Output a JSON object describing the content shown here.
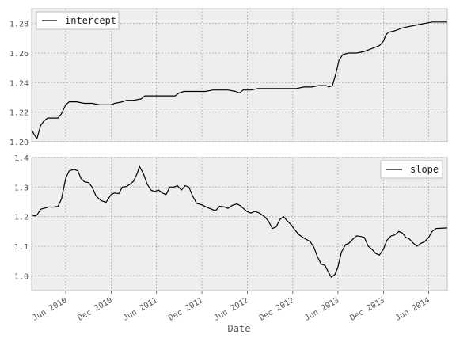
{
  "chart_data": [
    {
      "type": "line",
      "title": "",
      "xlabel": "",
      "ylabel": "",
      "series": [
        {
          "name": "intercept"
        }
      ],
      "legend": "top-left",
      "grid": true,
      "xlim": [
        "2010-01-15",
        "2014-08-15"
      ],
      "ylim": [
        1.2,
        1.29
      ],
      "yticks": [
        1.2,
        1.22,
        1.24,
        1.26,
        1.28
      ],
      "ytick_labels": [
        "1.20",
        "1.22",
        "1.24",
        "1.26",
        "1.28"
      ],
      "points": [
        [
          "2010-01-15",
          1.208
        ],
        [
          "2010-01-25",
          1.205
        ],
        [
          "2010-02-05",
          1.202
        ],
        [
          "2010-02-20",
          1.211
        ],
        [
          "2010-03-05",
          1.214
        ],
        [
          "2010-03-20",
          1.216
        ],
        [
          "2010-04-10",
          1.216
        ],
        [
          "2010-05-01",
          1.216
        ],
        [
          "2010-05-15",
          1.219
        ],
        [
          "2010-06-01",
          1.225
        ],
        [
          "2010-06-15",
          1.227
        ],
        [
          "2010-07-15",
          1.227
        ],
        [
          "2010-08-15",
          1.226
        ],
        [
          "2010-09-15",
          1.226
        ],
        [
          "2010-10-15",
          1.225
        ],
        [
          "2010-11-15",
          1.225
        ],
        [
          "2010-12-01",
          1.225
        ],
        [
          "2010-12-15",
          1.226
        ],
        [
          "2011-01-15",
          1.227
        ],
        [
          "2011-02-01",
          1.228
        ],
        [
          "2011-03-01",
          1.228
        ],
        [
          "2011-04-01",
          1.229
        ],
        [
          "2011-04-15",
          1.231
        ],
        [
          "2011-05-15",
          1.231
        ],
        [
          "2011-06-15",
          1.231
        ],
        [
          "2011-07-15",
          1.231
        ],
        [
          "2011-08-15",
          1.231
        ],
        [
          "2011-09-01",
          1.233
        ],
        [
          "2011-09-20",
          1.234
        ],
        [
          "2011-10-15",
          1.234
        ],
        [
          "2011-11-15",
          1.234
        ],
        [
          "2011-12-15",
          1.234
        ],
        [
          "2012-01-15",
          1.235
        ],
        [
          "2012-02-15",
          1.235
        ],
        [
          "2012-03-15",
          1.235
        ],
        [
          "2012-04-15",
          1.234
        ],
        [
          "2012-05-01",
          1.233
        ],
        [
          "2012-05-15",
          1.235
        ],
        [
          "2012-06-15",
          1.235
        ],
        [
          "2012-07-15",
          1.236
        ],
        [
          "2012-08-15",
          1.236
        ],
        [
          "2012-09-15",
          1.236
        ],
        [
          "2012-10-15",
          1.236
        ],
        [
          "2012-11-01",
          1.236
        ],
        [
          "2012-11-15",
          1.236
        ],
        [
          "2012-12-15",
          1.236
        ],
        [
          "2013-01-15",
          1.237
        ],
        [
          "2013-02-15",
          1.237
        ],
        [
          "2013-03-15",
          1.238
        ],
        [
          "2013-04-15",
          1.238
        ],
        [
          "2013-04-25",
          1.237
        ],
        [
          "2013-05-10",
          1.238
        ],
        [
          "2013-05-25",
          1.247
        ],
        [
          "2013-06-05",
          1.255
        ],
        [
          "2013-06-20",
          1.259
        ],
        [
          "2013-07-15",
          1.26
        ],
        [
          "2013-08-15",
          1.26
        ],
        [
          "2013-09-15",
          1.261
        ],
        [
          "2013-10-15",
          1.263
        ],
        [
          "2013-11-15",
          1.265
        ],
        [
          "2013-12-01",
          1.268
        ],
        [
          "2013-12-10",
          1.272
        ],
        [
          "2013-12-20",
          1.274
        ],
        [
          "2014-01-15",
          1.275
        ],
        [
          "2014-02-15",
          1.277
        ],
        [
          "2014-03-15",
          1.278
        ],
        [
          "2014-04-15",
          1.279
        ],
        [
          "2014-05-15",
          1.28
        ],
        [
          "2014-06-15",
          1.281
        ],
        [
          "2014-07-15",
          1.281
        ],
        [
          "2014-08-15",
          1.281
        ]
      ]
    },
    {
      "type": "line",
      "title": "",
      "xlabel": "Date",
      "ylabel": "",
      "series": [
        {
          "name": "slope"
        }
      ],
      "legend": "top-right",
      "grid": true,
      "xlim": [
        "2010-01-15",
        "2014-08-15"
      ],
      "ylim": [
        0.95,
        1.4
      ],
      "yticks": [
        1.0,
        1.1,
        1.2,
        1.3,
        1.4
      ],
      "ytick_labels": [
        "1.0",
        "1.1",
        "1.2",
        "1.3",
        "1.4"
      ],
      "xticks": [
        "2010-06-01",
        "2010-12-01",
        "2011-06-01",
        "2011-12-01",
        "2012-06-01",
        "2012-12-01",
        "2013-06-01",
        "2013-12-01",
        "2014-06-01"
      ],
      "xtick_labels": [
        "Jun 2010",
        "Dec 2010",
        "Jun 2011",
        "Dec 2011",
        "Jun 2012",
        "Dec 2012",
        "Jun 2013",
        "Dec 2013",
        "Jun 2014"
      ],
      "points": [
        [
          "2010-01-15",
          1.208
        ],
        [
          "2010-01-25",
          1.202
        ],
        [
          "2010-02-05",
          1.205
        ],
        [
          "2010-02-20",
          1.225
        ],
        [
          "2010-03-05",
          1.228
        ],
        [
          "2010-03-25",
          1.233
        ],
        [
          "2010-04-10",
          1.232
        ],
        [
          "2010-05-01",
          1.235
        ],
        [
          "2010-05-15",
          1.26
        ],
        [
          "2010-06-01",
          1.33
        ],
        [
          "2010-06-15",
          1.355
        ],
        [
          "2010-07-05",
          1.36
        ],
        [
          "2010-07-20",
          1.355
        ],
        [
          "2010-08-01",
          1.33
        ],
        [
          "2010-08-15",
          1.318
        ],
        [
          "2010-09-01",
          1.315
        ],
        [
          "2010-09-15",
          1.3
        ],
        [
          "2010-10-01",
          1.27
        ],
        [
          "2010-10-20",
          1.255
        ],
        [
          "2010-11-10",
          1.248
        ],
        [
          "2010-12-01",
          1.275
        ],
        [
          "2010-12-15",
          1.28
        ],
        [
          "2011-01-01",
          1.278
        ],
        [
          "2011-01-15",
          1.3
        ],
        [
          "2011-02-01",
          1.302
        ],
        [
          "2011-02-15",
          1.31
        ],
        [
          "2011-03-01",
          1.32
        ],
        [
          "2011-03-15",
          1.345
        ],
        [
          "2011-03-25",
          1.37
        ],
        [
          "2011-04-10",
          1.345
        ],
        [
          "2011-04-25",
          1.31
        ],
        [
          "2011-05-10",
          1.29
        ],
        [
          "2011-05-25",
          1.285
        ],
        [
          "2011-06-10",
          1.29
        ],
        [
          "2011-06-25",
          1.28
        ],
        [
          "2011-07-10",
          1.275
        ],
        [
          "2011-07-25",
          1.3
        ],
        [
          "2011-08-10",
          1.3
        ],
        [
          "2011-08-25",
          1.305
        ],
        [
          "2011-09-10",
          1.29
        ],
        [
          "2011-09-25",
          1.305
        ],
        [
          "2011-10-10",
          1.3
        ],
        [
          "2011-10-25",
          1.27
        ],
        [
          "2011-11-10",
          1.245
        ],
        [
          "2011-12-01",
          1.24
        ],
        [
          "2011-12-20",
          1.232
        ],
        [
          "2012-01-10",
          1.225
        ],
        [
          "2012-01-25",
          1.22
        ],
        [
          "2012-02-10",
          1.235
        ],
        [
          "2012-03-01",
          1.233
        ],
        [
          "2012-03-15",
          1.228
        ],
        [
          "2012-04-01",
          1.238
        ],
        [
          "2012-04-20",
          1.243
        ],
        [
          "2012-05-05",
          1.237
        ],
        [
          "2012-05-20",
          1.225
        ],
        [
          "2012-06-01",
          1.217
        ],
        [
          "2012-06-15",
          1.212
        ],
        [
          "2012-07-01",
          1.218
        ],
        [
          "2012-07-20",
          1.212
        ],
        [
          "2012-08-10",
          1.2
        ],
        [
          "2012-08-25",
          1.185
        ],
        [
          "2012-09-10",
          1.16
        ],
        [
          "2012-09-25",
          1.165
        ],
        [
          "2012-10-10",
          1.19
        ],
        [
          "2012-10-25",
          1.2
        ],
        [
          "2012-11-10",
          1.185
        ],
        [
          "2012-11-25",
          1.172
        ],
        [
          "2012-12-10",
          1.155
        ],
        [
          "2012-12-25",
          1.14
        ],
        [
          "2013-01-10",
          1.13
        ],
        [
          "2013-01-25",
          1.123
        ],
        [
          "2013-02-10",
          1.115
        ],
        [
          "2013-02-25",
          1.095
        ],
        [
          "2013-03-10",
          1.065
        ],
        [
          "2013-03-25",
          1.04
        ],
        [
          "2013-04-10",
          1.035
        ],
        [
          "2013-04-25",
          1.01
        ],
        [
          "2013-05-05",
          0.995
        ],
        [
          "2013-05-20",
          1.005
        ],
        [
          "2013-06-01",
          1.03
        ],
        [
          "2013-06-15",
          1.08
        ],
        [
          "2013-07-01",
          1.105
        ],
        [
          "2013-07-15",
          1.11
        ],
        [
          "2013-08-01",
          1.125
        ],
        [
          "2013-08-15",
          1.135
        ],
        [
          "2013-09-01",
          1.133
        ],
        [
          "2013-09-15",
          1.13
        ],
        [
          "2013-10-01",
          1.1
        ],
        [
          "2013-10-15",
          1.09
        ],
        [
          "2013-11-01",
          1.075
        ],
        [
          "2013-11-15",
          1.07
        ],
        [
          "2013-12-01",
          1.09
        ],
        [
          "2013-12-15",
          1.12
        ],
        [
          "2014-01-01",
          1.135
        ],
        [
          "2014-01-15",
          1.138
        ],
        [
          "2014-02-01",
          1.15
        ],
        [
          "2014-02-15",
          1.145
        ],
        [
          "2014-03-01",
          1.13
        ],
        [
          "2014-03-15",
          1.125
        ],
        [
          "2014-04-01",
          1.11
        ],
        [
          "2014-04-15",
          1.1
        ],
        [
          "2014-05-01",
          1.11
        ],
        [
          "2014-05-15",
          1.115
        ],
        [
          "2014-06-01",
          1.13
        ],
        [
          "2014-06-15",
          1.15
        ],
        [
          "2014-07-01",
          1.16
        ],
        [
          "2014-08-15",
          1.162
        ]
      ]
    }
  ]
}
